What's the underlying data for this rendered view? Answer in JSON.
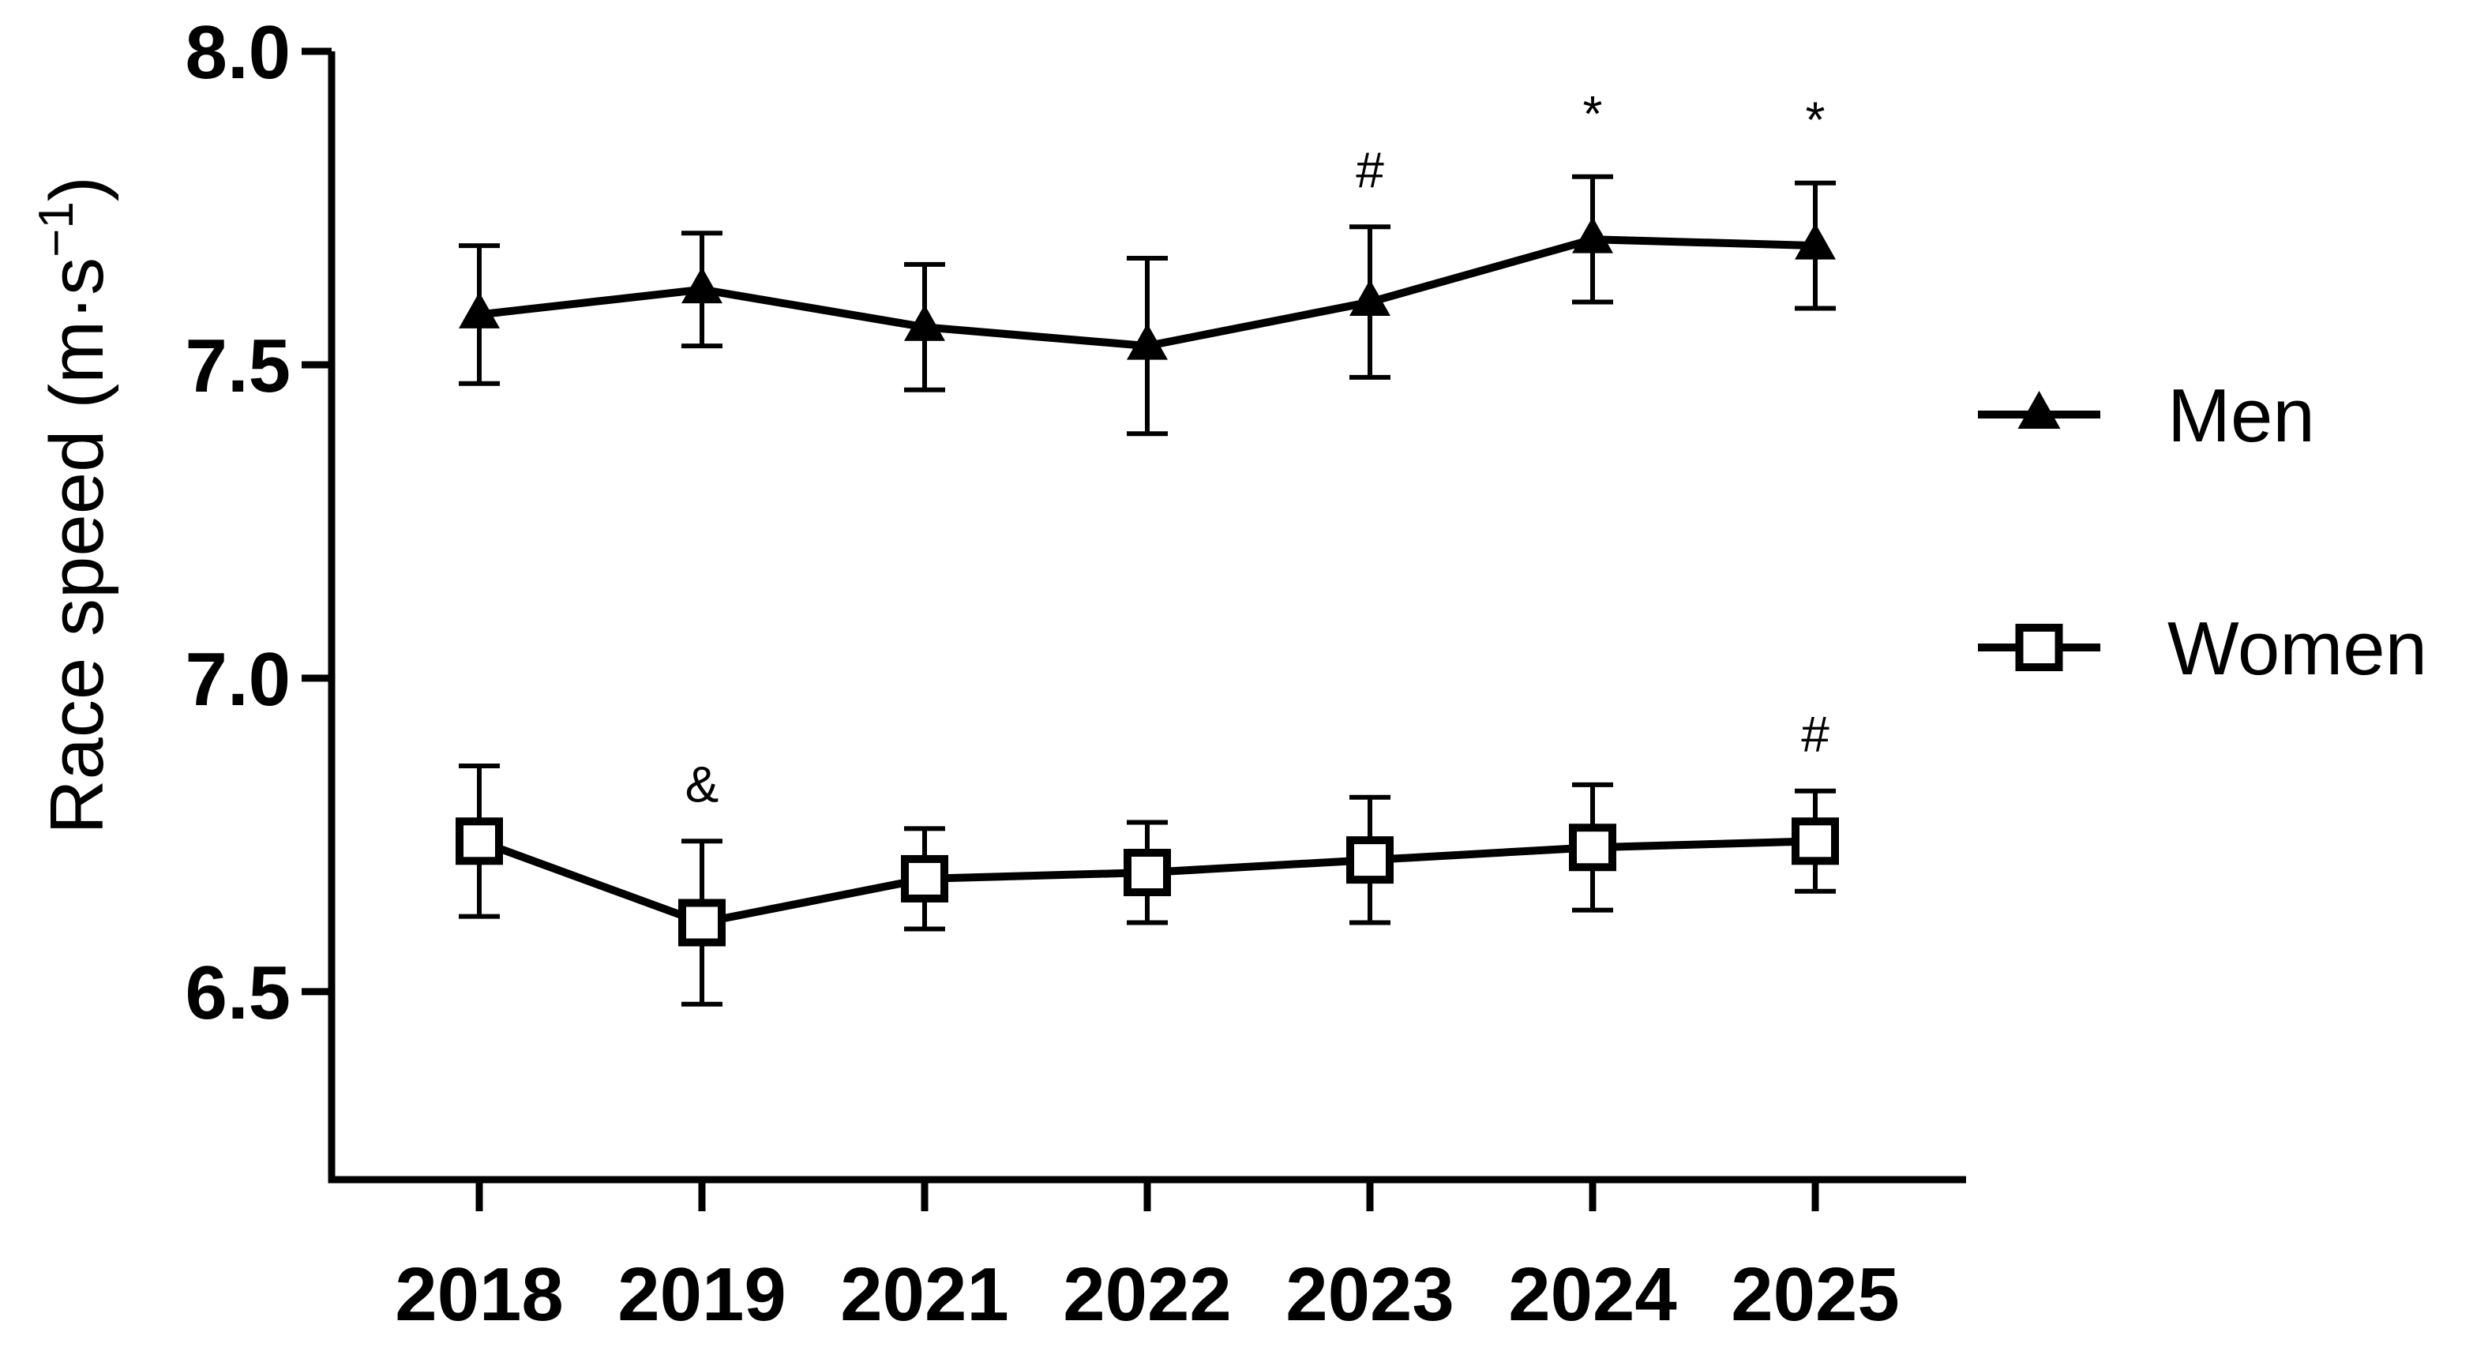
{
  "chart_data": {
    "type": "line",
    "title": "",
    "xlabel": "",
    "ylabel": "Race speed (m·s",
    "ylabel_sup": "−1",
    "ylabel_close": ")",
    "categories": [
      "2018",
      "2019",
      "2021",
      "2022",
      "2023",
      "2024",
      "2025"
    ],
    "ylim": [
      6.2,
      8.0
    ],
    "yticks": [
      6.5,
      7.0,
      7.5,
      8.0
    ],
    "ytick_labels": [
      "6.5",
      "7.0",
      "7.5",
      "8.0"
    ],
    "grid": false,
    "legend_position": "right",
    "series": [
      {
        "name": "Men",
        "marker": "filled-triangle",
        "color": "#000000",
        "values": [
          7.58,
          7.62,
          7.56,
          7.53,
          7.6,
          7.7,
          7.69
        ],
        "error": [
          0.11,
          0.09,
          0.1,
          0.14,
          0.12,
          0.1,
          0.1
        ],
        "annotations": [
          "",
          "",
          "",
          "",
          "#",
          "*",
          "*"
        ]
      },
      {
        "name": "Women",
        "marker": "open-square",
        "color": "#000000",
        "values": [
          6.74,
          6.61,
          6.68,
          6.69,
          6.71,
          6.73,
          6.74
        ],
        "error": [
          0.12,
          0.13,
          0.08,
          0.08,
          0.1,
          0.1,
          0.08
        ],
        "annotations": [
          "",
          "&",
          "",
          "",
          "",
          "",
          "#"
        ]
      }
    ]
  }
}
